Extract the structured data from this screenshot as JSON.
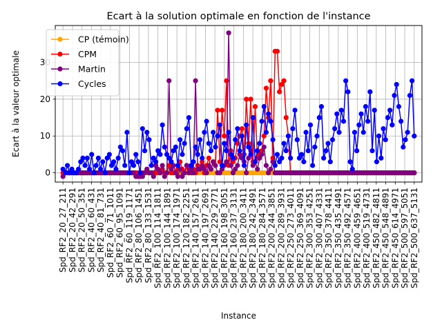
{
  "chart_data": {
    "type": "line",
    "title": "Ecart à la solution optimale en fonction de l'instance",
    "xlabel": "Instance",
    "ylabel": "Ecart à la valeur optimale",
    "ylim": [
      -2.5,
      40
    ],
    "yticks": [
      0,
      10,
      20,
      30
    ],
    "grid": true,
    "legend_position": "top-left",
    "n_points": 160,
    "xtick_labels": [
      "Spd_RF2_20_27_211",
      "Spd_RF2_20_42_291",
      "Spd_RF2_20_50_351",
      "Spd_RF2_40_60_431",
      "Spd_RF2_40_81_731",
      "Spd_RF2_60_71_1011",
      "Spd_RF2_60_95_1091",
      "Spd_RF2_60_119_1171",
      "Spd_RF2_80_106_1451",
      "Spd_RF2_80_133_1531",
      "Spd_RF2_100_114_1811",
      "Spd_RF2_100_144_1891",
      "Spd_RF2_100_174_1971",
      "Spd_RF2_120_182_2251",
      "Spd_RF2_140_157_2611",
      "Spd_RF2_140_197_2691",
      "Spd_RF2_140_229_2771",
      "Spd_RF2_160_198_3051",
      "Spd_RF2_160_237_3131",
      "Spd_RF2_180_200_3411",
      "Spd_RF2_180_242_3491",
      "Spd_RF2_180_284_3571",
      "Spd_RF2_200_244_3851",
      "Spd_RF2_200_289_3931",
      "Spd_RF2_250_273_4011",
      "Spd_RF2_250_369_4091",
      "Spd_RF2_300_353_4251",
      "Spd_RF2_300_407_4331",
      "Spd_RF2_350_378_4411",
      "Spd_RF2_350_435_4491",
      "Spd_RF2_350_492_4571",
      "Spd_RF2_400_459_4651",
      "Spd_RF2_400_519_4731",
      "Spd_RF2_450_482_4811",
      "Spd_RF2_450_548_4891",
      "Spd_RF2_450_614_4971",
      "Spd_RF2_500_597_5051",
      "Spd_RF2_500_637_5131"
    ],
    "series": [
      {
        "name": "CP (témoin)",
        "color": "#ffa500",
        "values": [
          0,
          0,
          0,
          0,
          0,
          0,
          0,
          0,
          0,
          0,
          0,
          0,
          0,
          0,
          0,
          0,
          0,
          0,
          0,
          0,
          0,
          0,
          0,
          0,
          0,
          0,
          0,
          0,
          0,
          0,
          0,
          0,
          0,
          0,
          0,
          0,
          0,
          0,
          0,
          0,
          0,
          0,
          0,
          0,
          0,
          0,
          0,
          0,
          0,
          0,
          0,
          0,
          0,
          0,
          0,
          0,
          0,
          0,
          0,
          0,
          0,
          0,
          0,
          0,
          0,
          0,
          0,
          0,
          0,
          0,
          0,
          0,
          0,
          0,
          0,
          0,
          0,
          0,
          0,
          0,
          0,
          0,
          0,
          0,
          0,
          0,
          0,
          0,
          0,
          0,
          0,
          0,
          0,
          0,
          0,
          0,
          0,
          0,
          0,
          0,
          0,
          0,
          0,
          0,
          0,
          0,
          0,
          0,
          0,
          0,
          0,
          0,
          0,
          0,
          0,
          0,
          0,
          0,
          0,
          0,
          0,
          0,
          0,
          0,
          0,
          0,
          0,
          0,
          0,
          0,
          0,
          0,
          0,
          0,
          0,
          0,
          0,
          0,
          0,
          0,
          0,
          0,
          0,
          0,
          0,
          0,
          0,
          0,
          0,
          0,
          0,
          0,
          0,
          0,
          0,
          0,
          0,
          0,
          0,
          0
        ]
      },
      {
        "name": "CPM",
        "color": "#ff0000",
        "values": [
          0,
          0,
          0,
          0,
          0,
          0,
          0,
          0,
          0,
          0,
          0,
          0,
          0,
          0,
          0,
          0,
          0,
          0,
          0,
          0,
          0,
          0,
          0,
          0,
          0,
          0,
          0,
          0,
          0,
          0,
          0,
          0,
          0,
          0,
          0,
          0,
          0,
          0,
          1,
          0,
          0,
          0,
          0,
          0,
          0,
          1,
          0,
          0,
          2,
          0,
          0,
          0,
          1,
          3,
          1,
          0,
          2,
          1,
          0,
          1,
          0,
          2,
          1,
          3,
          0,
          2,
          4,
          1,
          3,
          2,
          17,
          3,
          17,
          10,
          25,
          2,
          6,
          3,
          4,
          8,
          10,
          12,
          5,
          20,
          8,
          20,
          3,
          18,
          4,
          5,
          6,
          10,
          23,
          15,
          25,
          4,
          33,
          33,
          22,
          24,
          25,
          15,
          10,
          0,
          0,
          0,
          0,
          0,
          0,
          0,
          0,
          0,
          0,
          0,
          0,
          0,
          0,
          0,
          0,
          0,
          0,
          0,
          0,
          0,
          0,
          0,
          0,
          0,
          0,
          0,
          0,
          0,
          0,
          0,
          0,
          0,
          0,
          0,
          0,
          0,
          0,
          0,
          0,
          0,
          0,
          0,
          0,
          0,
          0,
          0,
          0,
          0,
          0,
          0,
          0,
          0,
          0,
          0,
          0,
          0
        ]
      },
      {
        "name": "Martin",
        "color": "#800080",
        "values": [
          -1,
          0,
          0,
          0,
          0,
          0,
          0,
          0,
          0,
          0,
          0,
          0,
          0,
          0,
          0,
          0,
          0,
          0,
          0,
          0,
          0,
          0,
          0,
          0,
          0,
          0,
          0,
          0,
          0,
          0,
          0,
          0,
          0,
          -1,
          -1,
          -1,
          -1,
          0,
          1,
          0,
          0,
          -1,
          2,
          1,
          0,
          2,
          -1,
          0,
          25,
          1,
          2,
          0,
          -1,
          1,
          -1,
          0,
          2,
          0,
          1,
          0,
          25,
          1,
          1,
          2,
          1,
          0,
          2,
          1,
          3,
          2,
          0,
          0,
          1,
          2,
          3,
          38,
          2,
          0,
          1,
          2,
          5,
          4,
          3,
          0,
          4,
          6,
          2,
          3,
          1,
          4,
          5,
          7,
          2,
          0,
          1,
          3,
          0,
          0,
          0,
          0,
          0,
          0,
          0,
          0,
          0,
          0,
          0,
          0,
          0,
          0,
          0,
          0,
          0,
          0,
          0,
          0,
          0,
          0,
          0,
          0,
          0,
          0,
          0,
          0,
          0,
          0,
          0,
          0,
          0,
          0,
          0,
          0,
          0,
          0,
          0,
          0,
          0,
          0,
          0,
          0,
          0,
          0,
          0,
          0,
          0,
          0,
          0,
          0,
          0,
          0,
          0,
          0,
          0,
          0,
          0,
          0,
          0,
          0,
          0,
          0
        ]
      },
      {
        "name": "Cycles",
        "color": "#0000ff",
        "values": [
          1,
          0,
          2,
          0,
          1,
          0,
          0,
          1,
          3,
          4,
          2,
          4,
          1,
          5,
          0,
          2,
          4,
          1,
          3,
          0,
          4,
          5,
          2,
          3,
          1,
          4,
          7,
          6,
          2,
          11,
          0,
          3,
          2,
          5,
          3,
          0,
          12,
          6,
          11,
          9,
          2,
          4,
          3,
          6,
          5,
          13,
          7,
          5,
          4,
          3,
          6,
          7,
          2,
          9,
          5,
          8,
          12,
          15,
          2,
          3,
          7,
          5,
          9,
          4,
          11,
          14,
          8,
          6,
          11,
          7,
          10,
          13,
          2,
          8,
          6,
          11,
          5,
          4,
          9,
          12,
          6,
          10,
          2,
          13,
          7,
          5,
          15,
          3,
          6,
          8,
          14,
          18,
          11,
          16,
          14,
          9,
          2,
          5,
          3,
          4,
          8,
          6,
          10,
          4,
          12,
          17,
          9,
          4,
          5,
          3,
          11,
          6,
          13,
          2,
          7,
          10,
          15,
          18,
          4,
          6,
          8,
          3,
          9,
          12,
          16,
          11,
          17,
          14,
          25,
          22,
          3,
          1,
          11,
          6,
          13,
          16,
          11,
          18,
          14,
          22,
          6,
          17,
          3,
          10,
          4,
          12,
          9,
          15,
          17,
          13,
          21,
          24,
          18,
          14,
          7,
          9,
          11,
          21,
          25,
          10
        ]
      }
    ]
  }
}
